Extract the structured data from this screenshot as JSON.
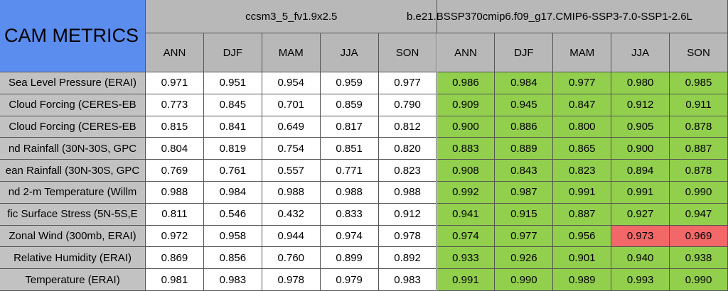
{
  "header": {
    "title": "CAM METRICS",
    "models": [
      "ccsm3_5_fv1.9x2.5",
      "b.e21.BSSP370cmip6.f09_g17.CMIP6-SSP3-7.0-SSP1-2.6L"
    ],
    "seasons": [
      [
        "ANN",
        "DJF",
        "MAM",
        "JJA",
        "SON"
      ],
      [
        "ANN",
        "DJF",
        "MAM",
        "JJA",
        "SON"
      ]
    ]
  },
  "table": {
    "rows": [
      {
        "label": "Sea Level Pressure (ERAI)",
        "values": [
          "0.971",
          "0.951",
          "0.954",
          "0.959",
          "0.977",
          "0.986",
          "0.984",
          "0.977",
          "0.980",
          "0.985"
        ]
      },
      {
        "label": "Cloud Forcing (CERES-EB",
        "values": [
          "0.773",
          "0.845",
          "0.701",
          "0.859",
          "0.790",
          "0.909",
          "0.945",
          "0.847",
          "0.912",
          "0.911"
        ]
      },
      {
        "label": "Cloud Forcing (CERES-EB",
        "values": [
          "0.815",
          "0.841",
          "0.649",
          "0.817",
          "0.812",
          "0.900",
          "0.886",
          "0.800",
          "0.905",
          "0.878"
        ]
      },
      {
        "label": "nd Rainfall (30N-30S, GPC",
        "values": [
          "0.804",
          "0.819",
          "0.754",
          "0.851",
          "0.820",
          "0.883",
          "0.889",
          "0.865",
          "0.900",
          "0.887"
        ]
      },
      {
        "label": "ean Rainfall (30N-30S, GPC",
        "values": [
          "0.769",
          "0.761",
          "0.557",
          "0.771",
          "0.823",
          "0.908",
          "0.843",
          "0.823",
          "0.894",
          "0.878"
        ]
      },
      {
        "label": "nd 2-m Temperature (Willm",
        "values": [
          "0.988",
          "0.984",
          "0.988",
          "0.988",
          "0.988",
          "0.992",
          "0.987",
          "0.991",
          "0.991",
          "0.990"
        ]
      },
      {
        "label": "fic Surface Stress (5N-5S,E",
        "values": [
          "0.811",
          "0.546",
          "0.432",
          "0.833",
          "0.912",
          "0.941",
          "0.915",
          "0.887",
          "0.927",
          "0.947"
        ]
      },
      {
        "label": "Zonal Wind (300mb, ERAI)",
        "values": [
          "0.972",
          "0.958",
          "0.944",
          "0.974",
          "0.978",
          "0.974",
          "0.977",
          "0.956",
          "0.973",
          "0.969"
        ]
      },
      {
        "label": "Relative Humidity (ERAI)",
        "values": [
          "0.869",
          "0.856",
          "0.760",
          "0.899",
          "0.892",
          "0.933",
          "0.926",
          "0.901",
          "0.940",
          "0.938"
        ]
      },
      {
        "label": "Temperature (ERAI)",
        "values": [
          "0.981",
          "0.983",
          "0.978",
          "0.979",
          "0.983",
          "0.991",
          "0.990",
          "0.989",
          "0.993",
          "0.990"
        ]
      }
    ]
  }
}
